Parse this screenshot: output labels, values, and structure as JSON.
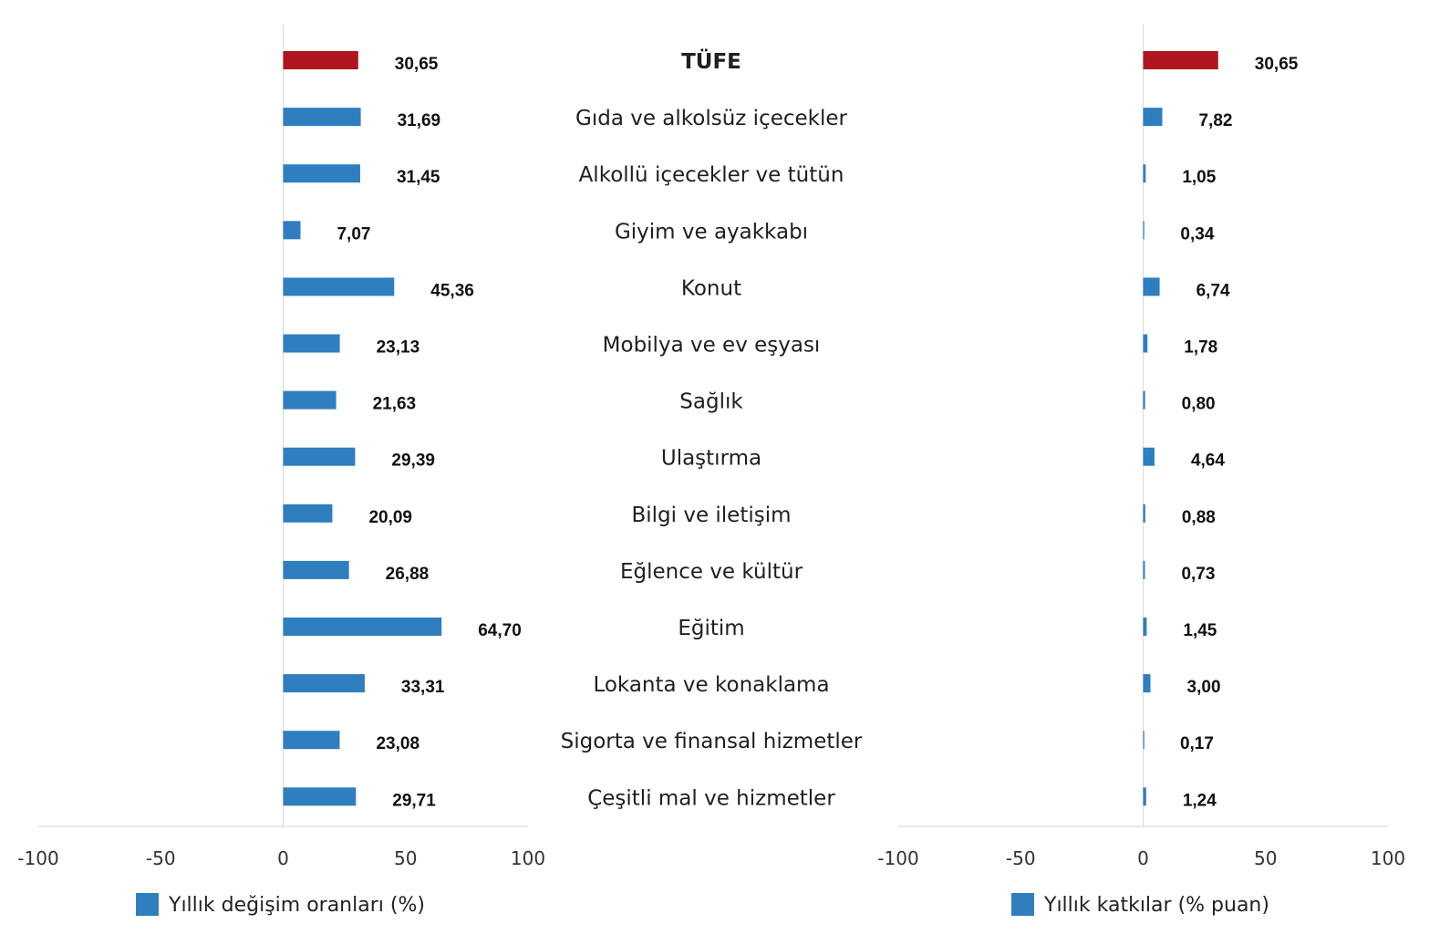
{
  "chart_data": [
    {
      "type": "bar",
      "orientation": "horizontal",
      "legend": "Yıllık değişim oranları (%)",
      "legend_placement": "bottom",
      "xlim": [
        -100,
        100
      ],
      "ticks": [
        -100,
        -50,
        0,
        50,
        100
      ],
      "tick_labels": [
        "-100",
        "-50",
        "0",
        "50",
        "100"
      ],
      "grid": false,
      "highlight_color": "#b0161e",
      "bar_color": "#2f7ebf",
      "values": [
        30.65,
        31.69,
        31.45,
        7.07,
        45.36,
        23.13,
        21.63,
        29.39,
        20.09,
        26.88,
        64.7,
        33.31,
        23.08,
        29.71
      ],
      "value_labels": [
        "30,65",
        "31,69",
        "31,45",
        "7,07",
        "45,36",
        "23,13",
        "21,63",
        "29,39",
        "20,09",
        "26,88",
        "64,70",
        "33,31",
        "23,08",
        "29,71"
      ]
    },
    {
      "type": "bar",
      "orientation": "horizontal",
      "legend": "Yıllık katkılar (% puan)",
      "legend_placement": "bottom",
      "xlim": [
        -100,
        100
      ],
      "ticks": [
        -100,
        -50,
        0,
        50,
        100
      ],
      "tick_labels": [
        "-100",
        "-50",
        "0",
        "50",
        "100"
      ],
      "grid": false,
      "highlight_color": "#b0161e",
      "bar_color": "#2f7ebf",
      "values": [
        30.65,
        7.82,
        1.05,
        0.34,
        6.74,
        1.78,
        0.8,
        4.64,
        0.88,
        0.73,
        1.45,
        3.0,
        0.17,
        1.24
      ],
      "value_labels": [
        "30,65",
        "7,82",
        "1,05",
        "0,34",
        "6,74",
        "1,78",
        "0,80",
        "4,64",
        "0,88",
        "0,73",
        "1,45",
        "3,00",
        "0,17",
        "1,24"
      ]
    }
  ],
  "categories": [
    "TÜFE",
    "Gıda ve alkolsüz içecekler",
    "Alkollü içecekler ve tütün",
    "Giyim ve ayakkabı",
    "Konut",
    "Mobilya ve ev eşyası",
    "Sağlık",
    "Ulaştırma",
    "Bilgi ve iletişim",
    "Eğlence ve kültür",
    "Eğitim",
    "Lokanta ve konaklama",
    "Sigorta ve finansal hizmetler",
    "Çeşitli mal ve hizmetler"
  ],
  "highlight_index": 0
}
